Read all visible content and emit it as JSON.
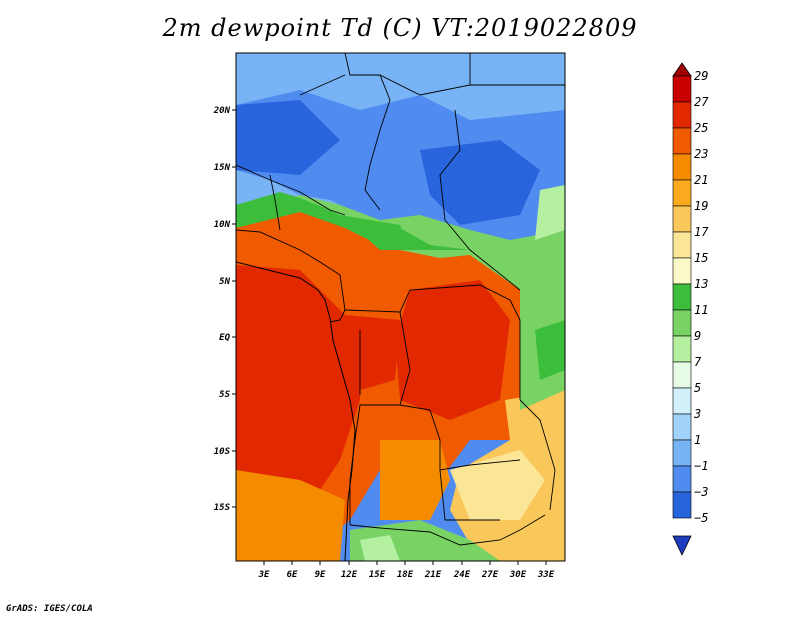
{
  "title": "2m dewpoint Td (C) VT:2019022809",
  "footer": "GrADS: IGES/COLA",
  "map": {
    "lat_labels": [
      "20N",
      "15N",
      "10N",
      "5N",
      "EQ",
      "5S",
      "10S",
      "15S"
    ],
    "lon_labels": [
      "3E",
      "6E",
      "9E",
      "12E",
      "15E",
      "18E",
      "21E",
      "24E",
      "27E",
      "30E",
      "33E"
    ]
  },
  "colorbar": {
    "labels": [
      "29",
      "27",
      "25",
      "23",
      "21",
      "19",
      "17",
      "15",
      "13",
      "11",
      "9",
      "7",
      "5",
      "3",
      "1",
      "−1",
      "−3",
      "−5"
    ],
    "colors": [
      "#a00000",
      "#c80000",
      "#e12800",
      "#f05a00",
      "#f58c00",
      "#faaa1e",
      "#fac85a",
      "#fae696",
      "#fafac8",
      "#3cbe3c",
      "#78d264",
      "#b4f0a0",
      "#e6fae6",
      "#d2f0fa",
      "#a0d2fa",
      "#78b4f5",
      "#508cf0",
      "#2864dc",
      "#1e3cbe"
    ]
  }
}
